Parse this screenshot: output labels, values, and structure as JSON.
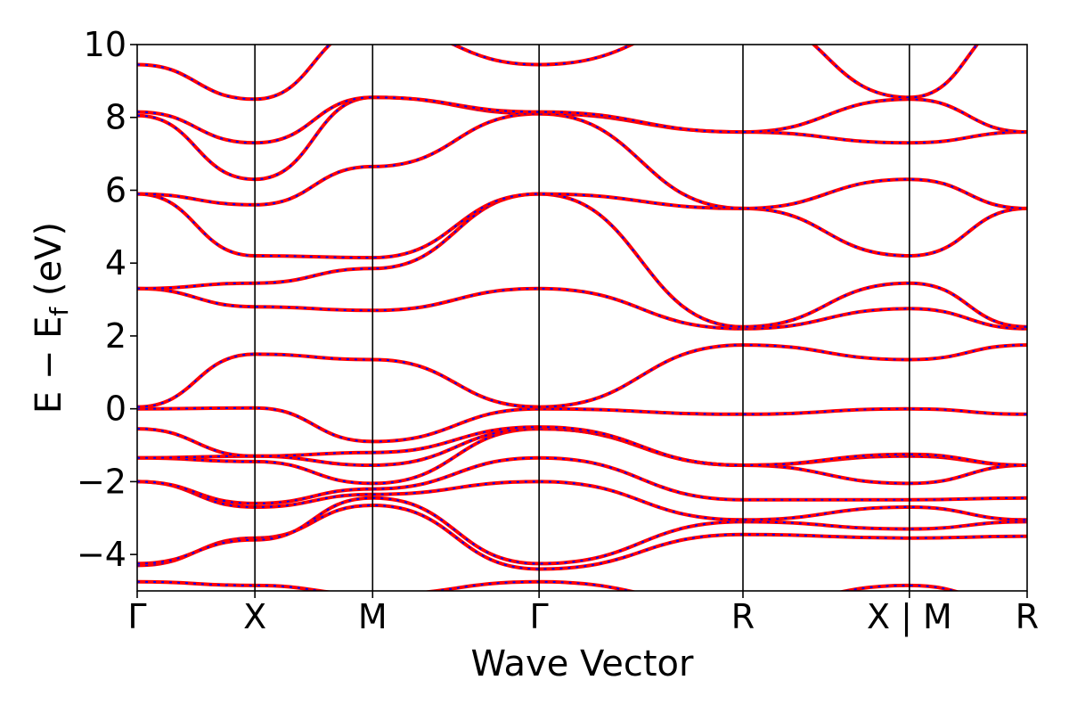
{
  "chart_data": {
    "type": "line",
    "title": "",
    "xlabel": "Wave Vector",
    "ylabel": "E − E",
    "ylabel_sub": "f",
    "ylabel_unit": " (eV)",
    "ylim": [
      -5,
      10
    ],
    "yticks": [
      -4,
      -2,
      0,
      2,
      4,
      6,
      8,
      10
    ],
    "ytick_labels": [
      "−4",
      "−2",
      "0",
      "2",
      "4",
      "6",
      "8",
      "10"
    ],
    "grid": false,
    "legend": "none",
    "colors": {
      "band_dashed": "#0000ff",
      "band_solid": "#ff0000",
      "axis": "#000000"
    },
    "kpath": {
      "labels": [
        "Γ",
        "X",
        "M",
        "Γ",
        "R",
        "X | M",
        "R"
      ],
      "positions": [
        0,
        0.5,
        1.0,
        1.707,
        2.573,
        3.28,
        3.78
      ]
    },
    "bands": [
      {
        "name": "b1",
        "values": [
          -4.75,
          -4.85,
          -5.1,
          -4.75,
          -5.4,
          -4.85,
          -5.4
        ]
      },
      {
        "name": "b2",
        "values": [
          -4.3,
          -3.55,
          -2.65,
          -4.4,
          -3.45,
          -3.55,
          -3.5
        ]
      },
      {
        "name": "b3",
        "values": [
          -4.25,
          -3.6,
          -2.45,
          -4.25,
          -3.1,
          -3.3,
          -3.1
        ]
      },
      {
        "name": "b4",
        "values": [
          -2.0,
          -2.7,
          -2.35,
          -2.0,
          -3.05,
          -2.7,
          -3.05
        ]
      },
      {
        "name": "b5",
        "values": [
          -2.0,
          -2.6,
          -2.2,
          -1.35,
          -2.5,
          -2.5,
          -2.45
        ]
      },
      {
        "name": "b6",
        "values": [
          -1.35,
          -1.45,
          -2.05,
          -0.55,
          -1.55,
          -2.05,
          -1.55
        ]
      },
      {
        "name": "b7",
        "values": [
          -1.35,
          -1.3,
          -1.55,
          -0.55,
          -1.55,
          -1.3,
          -1.55
        ]
      },
      {
        "name": "b8",
        "values": [
          -0.55,
          -1.3,
          -1.2,
          -0.5,
          -1.55,
          -1.25,
          -1.55
        ]
      },
      {
        "name": "b9",
        "values": [
          0.0,
          0.02,
          -0.9,
          0.0,
          -0.15,
          0.0,
          -0.15
        ]
      },
      {
        "name": "b10",
        "values": [
          0.05,
          1.5,
          1.35,
          0.05,
          1.75,
          1.35,
          1.75
        ]
      },
      {
        "name": "b11",
        "values": [
          3.3,
          2.8,
          2.7,
          3.3,
          2.2,
          2.75,
          2.2
        ]
      },
      {
        "name": "b12",
        "values": [
          3.3,
          3.45,
          3.85,
          5.9,
          2.25,
          3.45,
          2.25
        ]
      },
      {
        "name": "b13",
        "values": [
          5.9,
          4.2,
          4.15,
          5.9,
          5.5,
          4.2,
          5.5
        ]
      },
      {
        "name": "b14",
        "values": [
          5.9,
          5.6,
          6.65,
          8.1,
          5.5,
          6.3,
          5.5
        ]
      },
      {
        "name": "b15",
        "values": [
          8.05,
          6.3,
          8.55,
          8.1,
          7.6,
          7.3,
          7.6
        ]
      },
      {
        "name": "b16",
        "values": [
          8.15,
          7.3,
          8.55,
          8.15,
          7.6,
          8.5,
          7.6
        ]
      },
      {
        "name": "b17",
        "values": [
          9.45,
          8.5,
          10.5,
          9.45,
          10.8,
          8.55,
          10.8
        ]
      }
    ]
  }
}
